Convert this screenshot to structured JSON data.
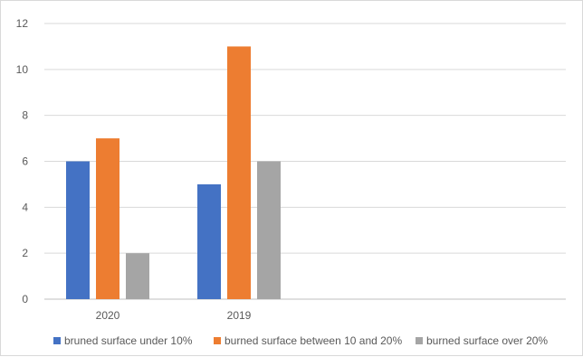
{
  "chart_data": {
    "type": "bar",
    "categories": [
      "2020",
      "2019"
    ],
    "series": [
      {
        "name": "bruned surface under 10%",
        "color": "#4472C4",
        "values": [
          6,
          5
        ]
      },
      {
        "name": "burned surface between 10 and 20%",
        "color": "#ED7D31",
        "values": [
          7,
          11
        ]
      },
      {
        "name": "burned surface over 20%",
        "color": "#A5A5A5",
        "values": [
          2,
          6
        ]
      }
    ],
    "yticks": [
      "0",
      "2",
      "4",
      "6",
      "8",
      "10",
      "12"
    ],
    "ylim": [
      0,
      12
    ],
    "grid": true,
    "legend_position": "bottom",
    "title": "",
    "xlabel": "",
    "ylabel": ""
  }
}
